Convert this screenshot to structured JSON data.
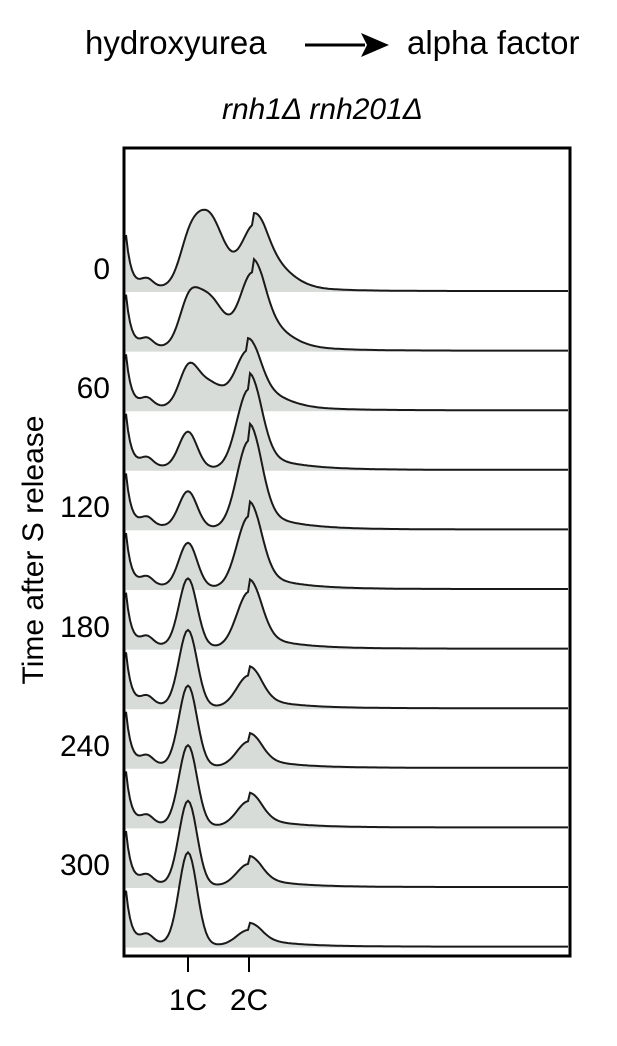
{
  "header": {
    "left_label": "hydroxyurea",
    "right_label": "alpha factor",
    "arrow_icon": "right-arrow-icon"
  },
  "subtitle": "rnh1Δ rnh201Δ",
  "chart_data": {
    "type": "area",
    "title": "",
    "ylabel": "Time after S release",
    "xlabel": "",
    "y_ticks": [
      "0",
      "60",
      "120",
      "180",
      "240",
      "300"
    ],
    "x_ticks": [
      "1C",
      "2C"
    ],
    "fill_color": "#d8dcd9",
    "line_color": "#1a1a1a",
    "series": [
      {
        "peak1": 0.45,
        "peak2": 0.55,
        "p2pos": 1.08,
        "fused": 1.0
      },
      {
        "peak1": 0.5,
        "peak2": 0.78,
        "p2pos": 1.05,
        "fused": 0.7
      },
      {
        "peak1": 0.45,
        "peak2": 0.65,
        "p2pos": 0.98,
        "fused": 0.35
      },
      {
        "peak1": 0.45,
        "peak2": 1.0,
        "p2pos": 1.0,
        "fused": 0.0
      },
      {
        "peak1": 0.45,
        "peak2": 1.1,
        "p2pos": 1.0,
        "fused": 0.0
      },
      {
        "peak1": 0.55,
        "peak2": 0.9,
        "p2pos": 1.0,
        "fused": 0.0
      },
      {
        "peak1": 0.85,
        "peak2": 0.7,
        "p2pos": 1.0,
        "fused": 0.0
      },
      {
        "peak1": 0.95,
        "peak2": 0.4,
        "p2pos": 1.0,
        "fused": 0.0
      },
      {
        "peak1": 1.0,
        "peak2": 0.32,
        "p2pos": 1.0,
        "fused": 0.0
      },
      {
        "peak1": 1.0,
        "peak2": 0.32,
        "p2pos": 1.0,
        "fused": 0.0
      },
      {
        "peak1": 1.05,
        "peak2": 0.28,
        "p2pos": 1.0,
        "fused": 0.0
      },
      {
        "peak1": 1.15,
        "peak2": 0.2,
        "p2pos": 1.0,
        "fused": 0.0
      }
    ]
  }
}
